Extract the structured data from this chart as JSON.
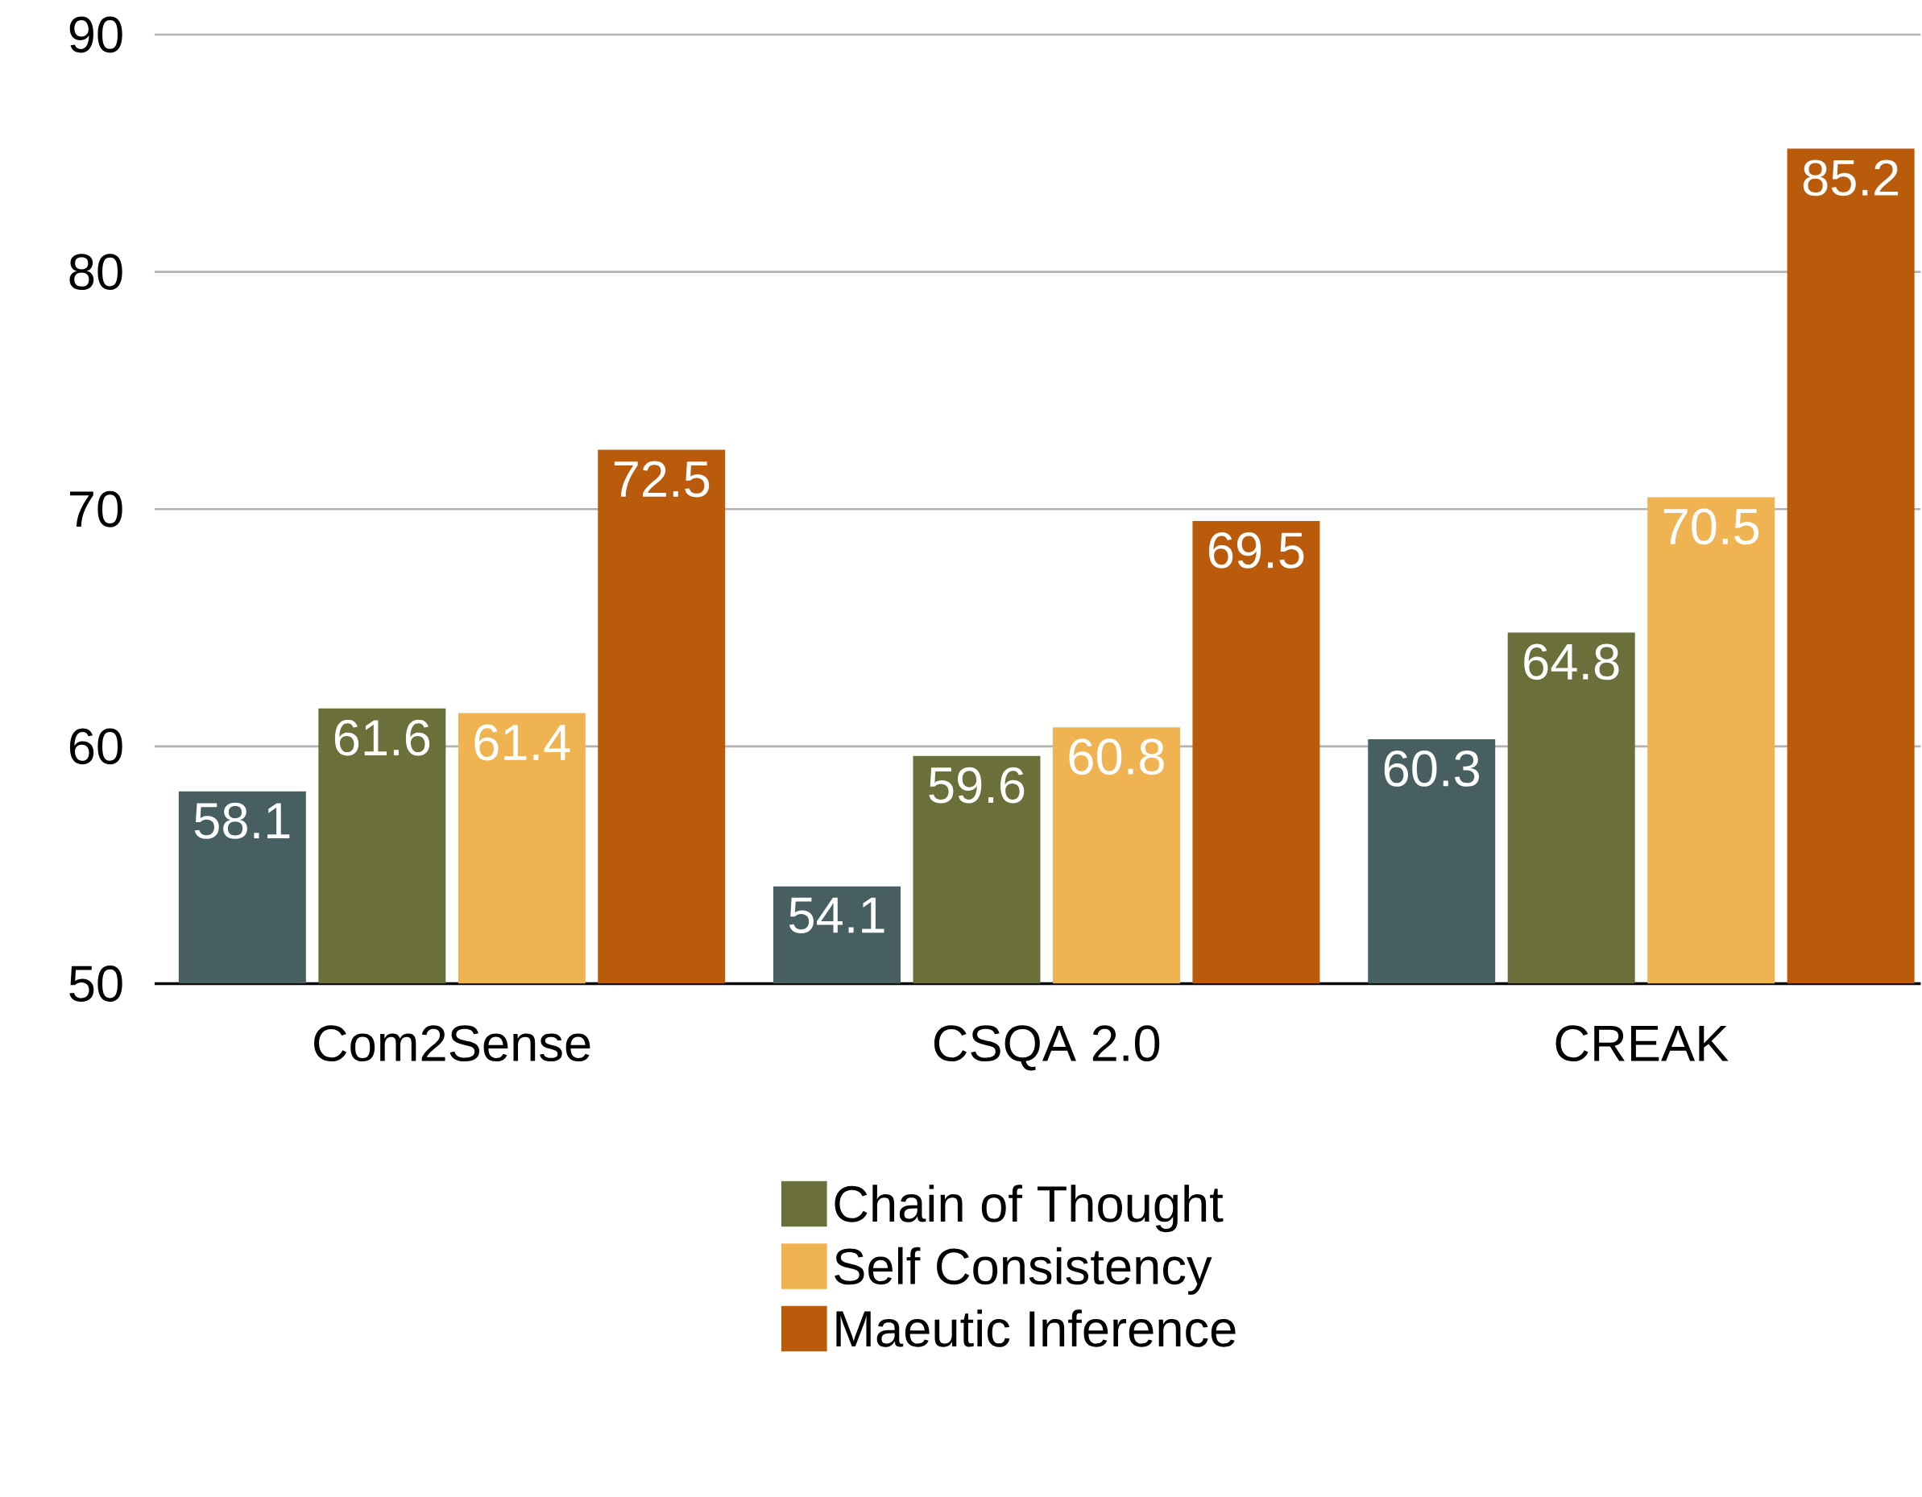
{
  "chart_data": {
    "type": "bar",
    "categories": [
      "Com2Sense",
      "CSQA 2.0",
      "CREAK"
    ],
    "series": [
      {
        "color": "#475f61",
        "values": [
          58.1,
          54.1,
          60.3
        ]
      },
      {
        "name": "Chain of Thought",
        "color": "#6b6f3a",
        "values": [
          61.6,
          59.6,
          64.8
        ]
      },
      {
        "name": "Self Consistency",
        "color": "#efb351",
        "values": [
          61.4,
          60.8,
          70.5
        ]
      },
      {
        "name": "Maeutic Inference",
        "color": "#b95b0a",
        "values": [
          72.5,
          69.5,
          85.2
        ]
      }
    ],
    "ylim": [
      50,
      90
    ],
    "yticks": [
      50,
      60,
      70,
      80,
      90
    ],
    "grid": "y",
    "legend": "bottom",
    "data_labels": true
  }
}
